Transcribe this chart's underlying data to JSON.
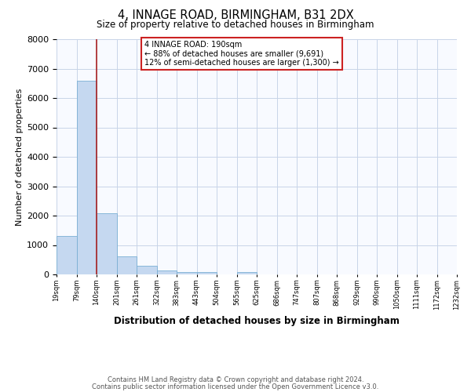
{
  "title": "4, INNAGE ROAD, BIRMINGHAM, B31 2DX",
  "subtitle": "Size of property relative to detached houses in Birmingham",
  "xlabel": "Distribution of detached houses by size in Birmingham",
  "ylabel": "Number of detached properties",
  "bar_values": [
    1320,
    6600,
    2080,
    620,
    300,
    140,
    80,
    80,
    0,
    80,
    0,
    0,
    0,
    0,
    0,
    0,
    0,
    0,
    0,
    0
  ],
  "bar_labels": [
    "19sqm",
    "79sqm",
    "140sqm",
    "201sqm",
    "261sqm",
    "322sqm",
    "383sqm",
    "443sqm",
    "504sqm",
    "565sqm",
    "625sqm",
    "686sqm",
    "747sqm",
    "807sqm",
    "868sqm",
    "929sqm",
    "990sqm",
    "1050sqm",
    "1111sqm",
    "1172sqm",
    "1232sqm"
  ],
  "bar_color": "#c5d8f0",
  "bar_edge_color": "#7aafd4",
  "ylim": [
    0,
    8000
  ],
  "yticks": [
    0,
    1000,
    2000,
    3000,
    4000,
    5000,
    6000,
    7000,
    8000
  ],
  "vline_x": 2.0,
  "vline_color": "#aa2222",
  "annotation_title": "4 INNAGE ROAD: 190sqm",
  "annotation_line1": "← 88% of detached houses are smaller (9,691)",
  "annotation_line2": "12% of semi-detached houses are larger (1,300) →",
  "annotation_box_color": "#cc2222",
  "footer_line1": "Contains HM Land Registry data © Crown copyright and database right 2024.",
  "footer_line2": "Contains public sector information licensed under the Open Government Licence v3.0.",
  "background_color": "#f8faff",
  "grid_color": "#c8d4e8",
  "fig_bg_color": "#ffffff"
}
